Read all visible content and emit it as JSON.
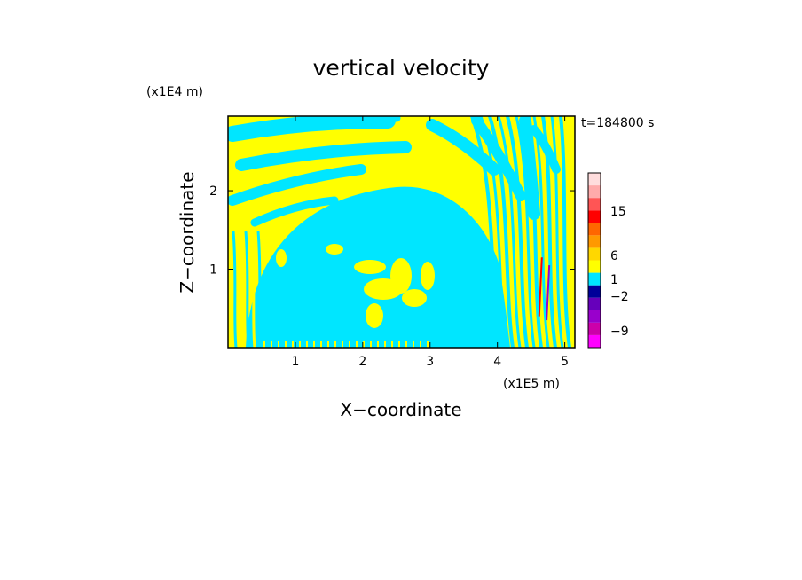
{
  "chart_data": {
    "type": "heatmap",
    "title": "vertical velocity",
    "xlabel": "X−coordinate",
    "ylabel": "Z−coordinate",
    "x_unit": "(x1E5 m)",
    "y_unit": "(x1E4 m)",
    "time_label": "t=184800 s",
    "xlim": [
      0,
      5.15
    ],
    "ylim": [
      0,
      2.95
    ],
    "x_ticks": [
      1,
      2,
      3,
      4,
      5
    ],
    "y_ticks": [
      1,
      2
    ],
    "colorbar": {
      "labels": [
        {
          "text": "15",
          "level": 15
        },
        {
          "text": "6",
          "level": 6
        },
        {
          "text": "1",
          "level": 1
        },
        {
          "text": "−2",
          "level": -2
        },
        {
          "text": "−9",
          "level": -9
        }
      ],
      "colors": [
        "#ff00ff",
        "#cc00aa",
        "#9900cc",
        "#6600bb",
        "#000099",
        "#00e6ff",
        "#ffff00",
        "#ffd700",
        "#ff9900",
        "#ff6600",
        "#ff0000",
        "#ff5555",
        "#ffaaaa",
        "#ffdddd"
      ],
      "background_positive": "#ffff00",
      "background_negative": "#00e6ff"
    }
  }
}
